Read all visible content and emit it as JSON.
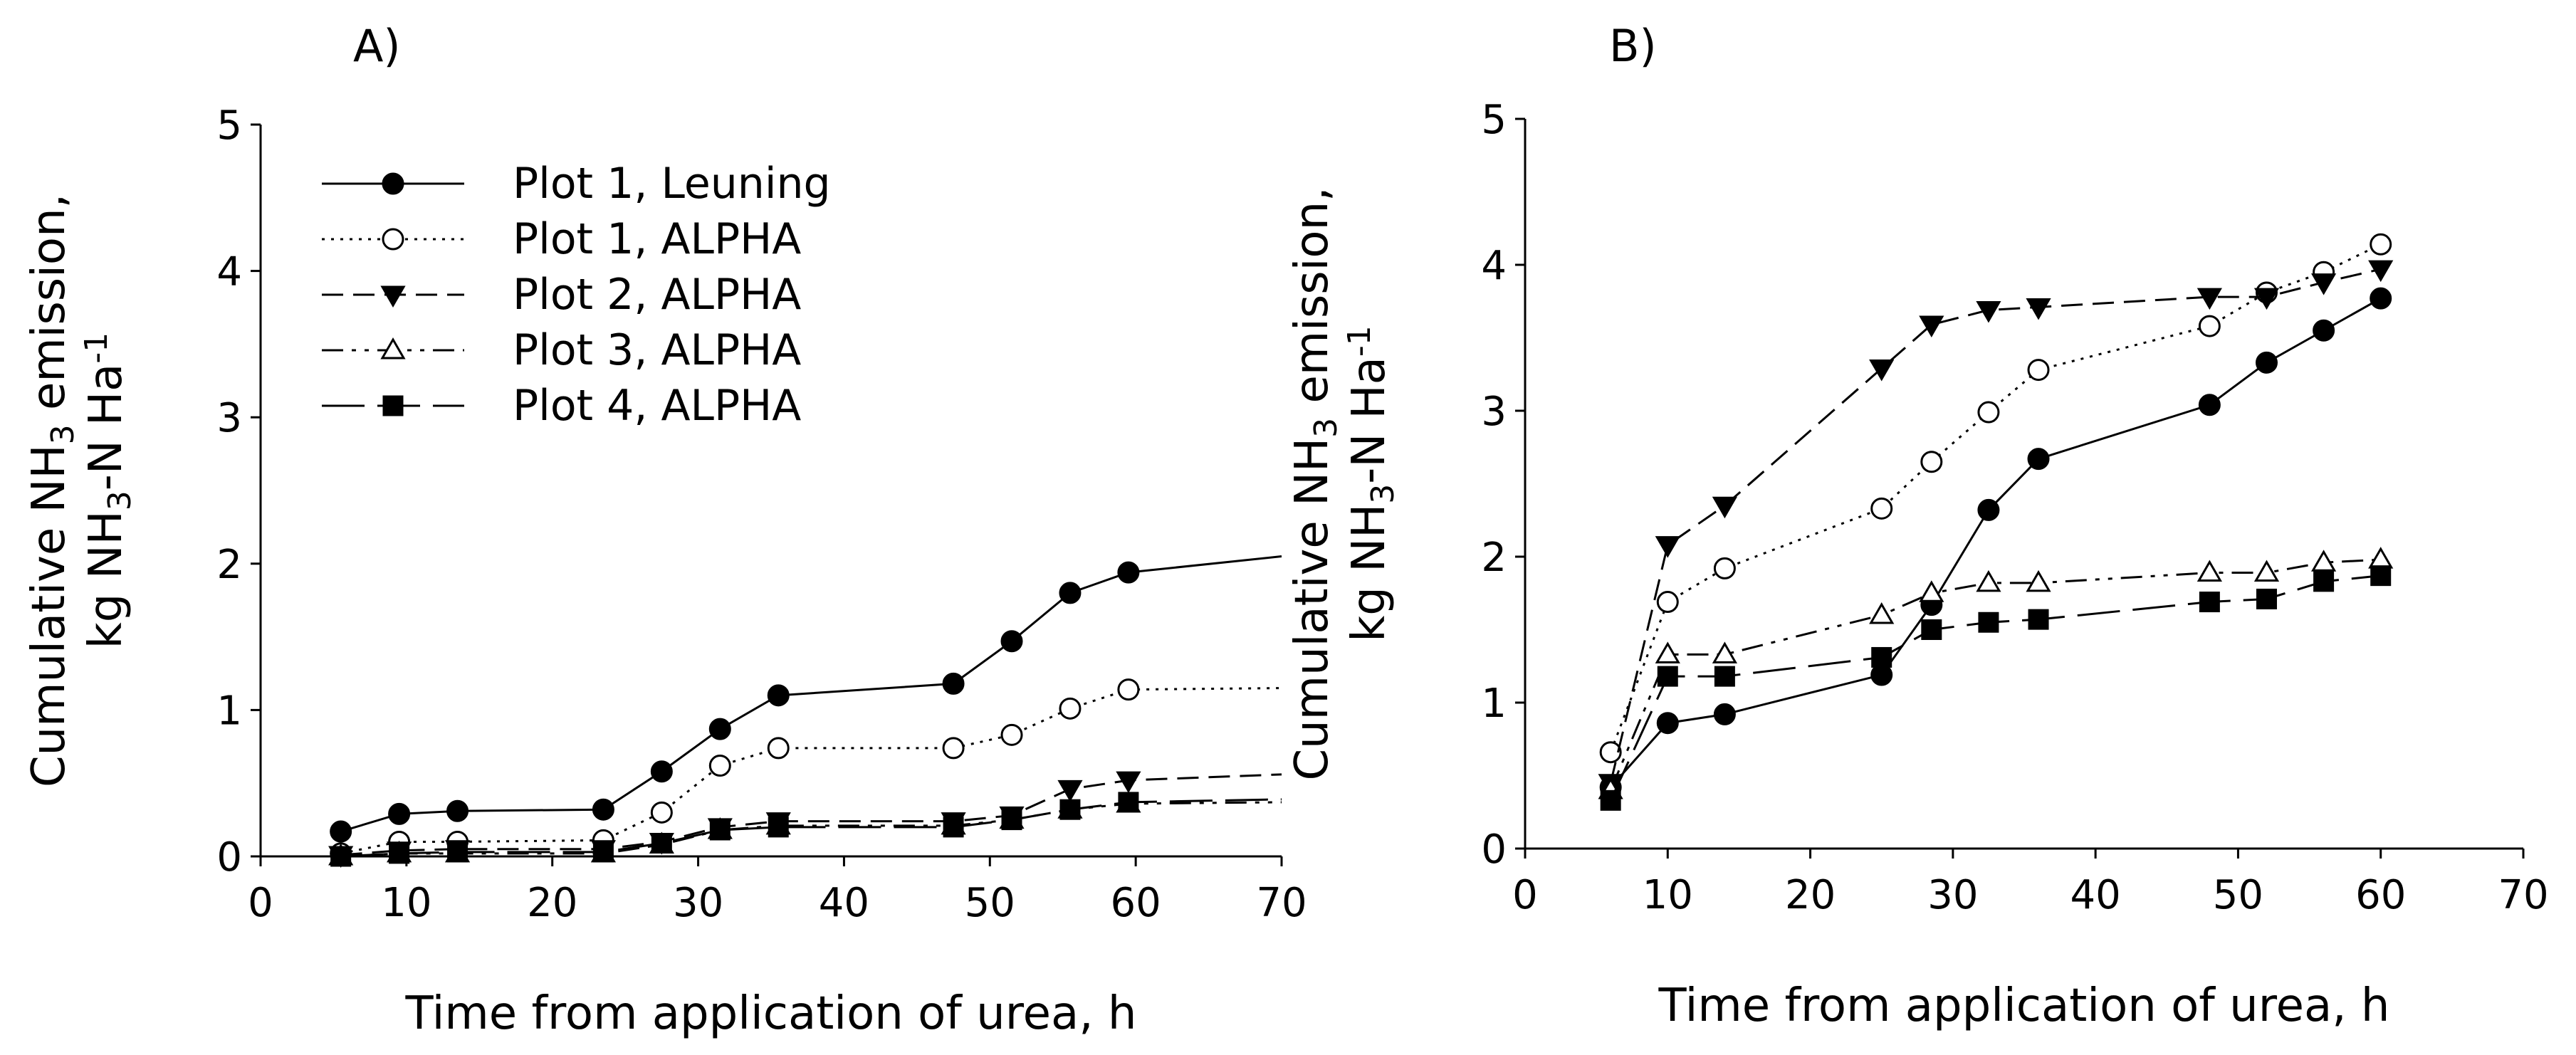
{
  "chart_data": [
    {
      "type": "line",
      "panel": "A)",
      "title": "",
      "xlabel": "Time from application of urea, h",
      "ylabel_line1": "Cumulative NH3 emission,",
      "ylabel_line2": "kg NH3-N Ha-1",
      "xlim": [
        0,
        70
      ],
      "ylim": [
        0,
        5
      ],
      "xticks": [
        0,
        10,
        20,
        30,
        40,
        50,
        60,
        70
      ],
      "yticks": [
        0,
        1,
        2,
        3,
        4,
        5
      ],
      "grid": false,
      "legend_position": "top-left",
      "series": [
        {
          "name": "Plot 1, Leuning",
          "style": "solid",
          "marker": "circle-filled",
          "x": [
            5.5,
            9.5,
            13.5,
            23.5,
            27.5,
            31.5,
            35.5,
            47.5,
            51.5,
            55.5,
            59.5,
            70
          ],
          "y": [
            0.17,
            0.29,
            0.31,
            0.32,
            0.58,
            0.87,
            1.1,
            1.18,
            1.47,
            1.8,
            1.94,
            2.05
          ],
          "markers": 11
        },
        {
          "name": "Plot 1, ALPHA",
          "style": "dotted",
          "marker": "circle-open",
          "x": [
            5.5,
            9.5,
            13.5,
            23.5,
            27.5,
            31.5,
            35.5,
            47.5,
            51.5,
            55.5,
            59.5,
            70
          ],
          "y": [
            0.02,
            0.1,
            0.1,
            0.11,
            0.3,
            0.62,
            0.74,
            0.74,
            0.83,
            1.01,
            1.14,
            1.15
          ],
          "markers": 11
        },
        {
          "name": "Plot 2, ALPHA",
          "style": "dashed",
          "marker": "triangle-down-filled",
          "x": [
            5.5,
            9.5,
            13.5,
            23.5,
            27.5,
            31.5,
            35.5,
            47.5,
            51.5,
            55.5,
            59.5,
            70
          ],
          "y": [
            0.01,
            0.04,
            0.05,
            0.05,
            0.1,
            0.2,
            0.24,
            0.24,
            0.28,
            0.46,
            0.52,
            0.56
          ],
          "markers": 11
        },
        {
          "name": "Plot 3, ALPHA",
          "style": "dashdot",
          "marker": "triangle-up-open",
          "x": [
            5.5,
            9.5,
            13.5,
            23.5,
            27.5,
            31.5,
            35.5,
            47.5,
            51.5,
            55.5,
            59.5,
            70
          ],
          "y": [
            0.0,
            0.02,
            0.02,
            0.02,
            0.08,
            0.18,
            0.21,
            0.21,
            0.25,
            0.32,
            0.36,
            0.37
          ],
          "markers": 11
        },
        {
          "name": "Plot 4, ALPHA",
          "style": "longdash",
          "marker": "square-filled",
          "x": [
            5.5,
            9.5,
            13.5,
            23.5,
            27.5,
            31.5,
            35.5,
            47.5,
            51.5,
            55.5,
            59.5,
            70
          ],
          "y": [
            0.0,
            0.02,
            0.03,
            0.03,
            0.09,
            0.18,
            0.2,
            0.2,
            0.25,
            0.32,
            0.37,
            0.39
          ],
          "markers": 11
        }
      ]
    },
    {
      "type": "line",
      "panel": "B)",
      "title": "",
      "xlabel": "Time from application of urea, h",
      "ylabel_line1": "Cumulative NH3 emission,",
      "ylabel_line2": "kg NH3-N Ha-1",
      "xlim": [
        0,
        70
      ],
      "ylim": [
        0,
        5
      ],
      "xticks": [
        0,
        10,
        20,
        30,
        40,
        50,
        60,
        70
      ],
      "yticks": [
        0,
        1,
        2,
        3,
        4,
        5
      ],
      "grid": false,
      "series": [
        {
          "name": "Plot 1, Leuning",
          "style": "solid",
          "marker": "circle-filled",
          "x": [
            6,
            10,
            14,
            25,
            28.5,
            32.5,
            36,
            48,
            52,
            56,
            60
          ],
          "y": [
            0.42,
            0.86,
            0.92,
            1.19,
            1.67,
            2.32,
            2.67,
            3.04,
            3.33,
            3.55,
            3.77
          ],
          "markers": 11
        },
        {
          "name": "Plot 1, ALPHA",
          "style": "dotted",
          "marker": "circle-open",
          "x": [
            6,
            10,
            14,
            25,
            28.5,
            32.5,
            36,
            48,
            52,
            56,
            60
          ],
          "y": [
            0.66,
            1.69,
            1.92,
            2.33,
            2.65,
            2.99,
            3.28,
            3.58,
            3.81,
            3.95,
            4.14
          ],
          "markers": 11
        },
        {
          "name": "Plot 2, ALPHA",
          "style": "dashed",
          "marker": "triangle-down-filled",
          "x": [
            6,
            10,
            14,
            25,
            28.5,
            32.5,
            36,
            48,
            52,
            56,
            60
          ],
          "y": [
            0.45,
            2.08,
            2.35,
            3.29,
            3.59,
            3.69,
            3.71,
            3.78,
            3.78,
            3.88,
            3.97
          ],
          "markers": 11
        },
        {
          "name": "Plot 3, ALPHA",
          "style": "dashdot",
          "marker": "triangle-up-open",
          "x": [
            6,
            10,
            14,
            25,
            28.5,
            32.5,
            36,
            48,
            52,
            56,
            60
          ],
          "y": [
            0.4,
            1.33,
            1.33,
            1.6,
            1.75,
            1.82,
            1.82,
            1.89,
            1.89,
            1.96,
            1.98
          ],
          "markers": 11
        },
        {
          "name": "Plot 4, ALPHA",
          "style": "longdash",
          "marker": "square-filled",
          "x": [
            6,
            10,
            14,
            25,
            28.5,
            32.5,
            36,
            48,
            52,
            56,
            60
          ],
          "y": [
            0.33,
            1.18,
            1.18,
            1.31,
            1.5,
            1.55,
            1.57,
            1.69,
            1.71,
            1.83,
            1.87
          ],
          "markers": 11
        }
      ]
    }
  ]
}
